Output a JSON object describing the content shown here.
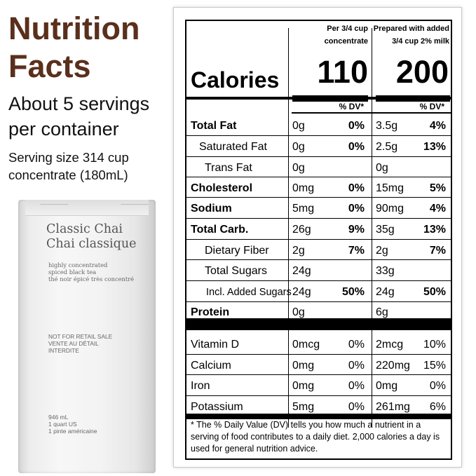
{
  "left": {
    "title_line1": "Nutrition",
    "title_line2": "Facts",
    "servings_line1": "About 5 servings",
    "servings_line2": "per container",
    "serving_size_line1": "Serving size 314 cup",
    "serving_size_line2": "concentrate (180mL)"
  },
  "carton": {
    "name_en": "Classic Chai",
    "name_fr": "Chai classique",
    "desc_line1": "highly concentrated",
    "desc_line2": "spiced black tea",
    "desc_line3": "thé noir épicé très concentré",
    "notice_line1": "NOT FOR RETAIL SALE",
    "notice_line2": "VENTE AU DÉTAIL",
    "notice_line3": "INTERDITE",
    "volume_line1": "946 mL",
    "volume_line2": "1 quart US",
    "volume_line3": "1 pinte américaine"
  },
  "panel": {
    "col1_head_line1": "Per 3/4 cup",
    "col1_head_line2": "concentrate",
    "col2_head_line1": "Prepared with added",
    "col2_head_line2": "3/4 cup 2% milk",
    "calories_label": "Calories",
    "calories_col1": "110",
    "calories_col2": "200",
    "dv_head_col1": "% DV*",
    "dv_head_col2": "% DV*",
    "rows": [
      {
        "label": "Total Fat",
        "amt1": "0g",
        "pct1": "0%",
        "amt2": "3.5g",
        "pct2": "4%"
      },
      {
        "label": "Saturated Fat",
        "amt1": "0g",
        "pct1": "0%",
        "amt2": "2.5g",
        "pct2": "13%"
      },
      {
        "label": "Trans Fat",
        "amt1": "0g",
        "pct1": "",
        "amt2": "0g",
        "pct2": ""
      },
      {
        "label": "Cholesterol",
        "amt1": "0mg",
        "pct1": "0%",
        "amt2": "15mg",
        "pct2": "5%"
      },
      {
        "label": "Sodium",
        "amt1": "5mg",
        "pct1": "0%",
        "amt2": "90mg",
        "pct2": "4%"
      },
      {
        "label": "Total Carb.",
        "amt1": "26g",
        "pct1": "9%",
        "amt2": "35g",
        "pct2": "13%"
      },
      {
        "label": "Dietary Fiber",
        "amt1": "2g",
        "pct1": "7%",
        "amt2": "2g",
        "pct2": "7%"
      },
      {
        "label": "Total Sugars",
        "amt1": "24g",
        "pct1": "",
        "amt2": "33g",
        "pct2": ""
      },
      {
        "label": "Incl. Added Sugars",
        "amt1": "24g",
        "pct1": "50%",
        "amt2": "24g",
        "pct2": "50%"
      },
      {
        "label": "Protein",
        "amt1": "0g",
        "pct1": "",
        "amt2": "6g",
        "pct2": ""
      },
      {
        "label": "Vitamin D",
        "amt1": "0mcg",
        "pct1": "0%",
        "amt2": "2mcg",
        "pct2": "10%"
      },
      {
        "label": "Calcium",
        "amt1": "0mg",
        "pct1": "0%",
        "amt2": "220mg",
        "pct2": "15%"
      },
      {
        "label": "Iron",
        "amt1": "0mg",
        "pct1": "0%",
        "amt2": "0mg",
        "pct2": "0%"
      },
      {
        "label": "Potassium",
        "amt1": "5mg",
        "pct1": "0%",
        "amt2": "261mg",
        "pct2": "6%"
      }
    ],
    "footnote": "* The % Daily Value (DV) tells you how much a nutrient in a serving of food contributes to a daily diet. 2,000 calories a day is used for general nutrition advice."
  }
}
